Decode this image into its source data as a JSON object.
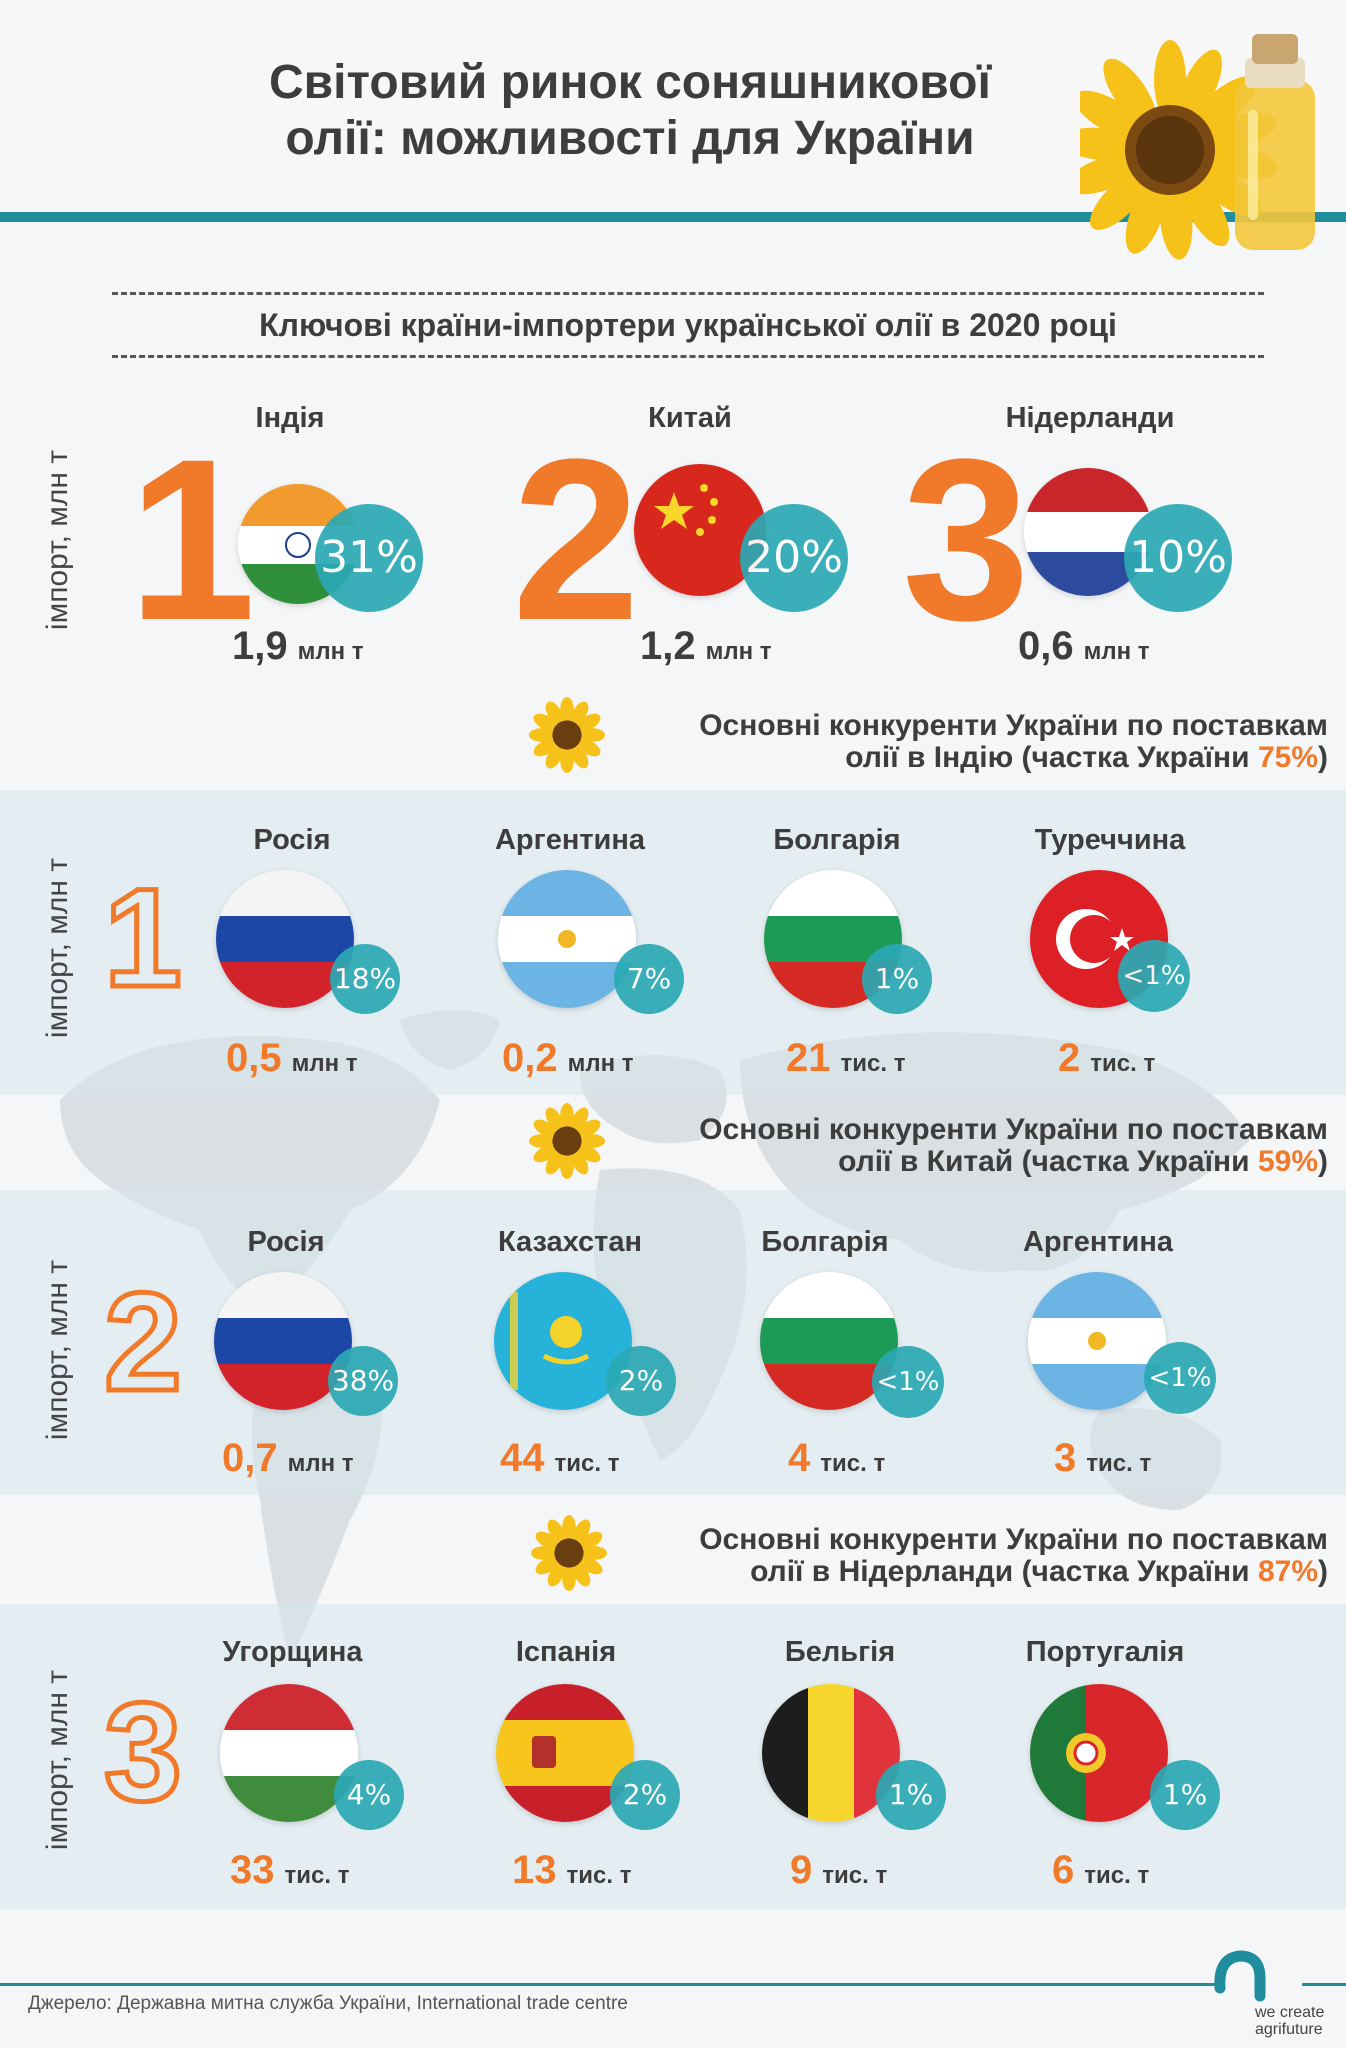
{
  "title_line1": "Світовий ринок соняшникової",
  "title_line2": "олії: можливості для України",
  "subtitle": "Ключові країни-імпортери української олії в 2020 році",
  "axis_label": "імпорт, млн т",
  "top": [
    {
      "rank": "1",
      "name": "Індія",
      "share": "31%",
      "value": "1,9",
      "unit": "млн т"
    },
    {
      "rank": "2",
      "name": "Китай",
      "share": "20%",
      "value": "1,2",
      "unit": "млн т"
    },
    {
      "rank": "3",
      "name": "Нідерланди",
      "share": "10%",
      "value": "0,6",
      "unit": "млн т"
    }
  ],
  "sections": [
    {
      "rank": "1",
      "heading_line1": "Основні конкуренти України по поставкам",
      "heading_prefix": "олії в Індію (частка України ",
      "heading_share": "75%",
      "heading_suffix": ")",
      "countries": [
        {
          "name": "Росія",
          "share": "18%",
          "value": "0,5",
          "unit": "млн т"
        },
        {
          "name": "Аргентина",
          "share": "7%",
          "value": "0,2",
          "unit": "млн т"
        },
        {
          "name": "Болгарія",
          "share": "1%",
          "value": "21",
          "unit": "тис. т"
        },
        {
          "name": "Туреччина",
          "share": "<1%",
          "value": "2",
          "unit": "тис. т"
        }
      ]
    },
    {
      "rank": "2",
      "heading_line1": "Основні конкуренти України по поставкам",
      "heading_prefix": "олії в Китай (частка України ",
      "heading_share": "59%",
      "heading_suffix": ")",
      "countries": [
        {
          "name": "Росія",
          "share": "38%",
          "value": "0,7",
          "unit": "млн т"
        },
        {
          "name": "Казахстан",
          "share": "2%",
          "value": "44",
          "unit": "тис. т"
        },
        {
          "name": "Болгарія",
          "share": "<1%",
          "value": "4",
          "unit": "тис. т"
        },
        {
          "name": "Аргентина",
          "share": "<1%",
          "value": "3",
          "unit": "тис. т"
        }
      ]
    },
    {
      "rank": "3",
      "heading_line1": "Основні конкуренти України по поставкам",
      "heading_prefix": "олії в Нідерланди (частка України ",
      "heading_share": "87%",
      "heading_suffix": ")",
      "countries": [
        {
          "name": "Угорщина",
          "share": "4%",
          "value": "33",
          "unit": "тис. т"
        },
        {
          "name": "Іспанія",
          "share": "2%",
          "value": "13",
          "unit": "тис. т"
        },
        {
          "name": "Бельгія",
          "share": "1%",
          "value": "9",
          "unit": "тис. т"
        },
        {
          "name": "Португалія",
          "share": "1%",
          "value": "6",
          "unit": "тис. т"
        }
      ]
    }
  ],
  "source": "Джерело: Державна митна служба України, International trade centre",
  "logo_line1": "we create",
  "logo_line2": "agrifuture",
  "colors": {
    "accent": "#f07a2a",
    "teal": "#2ba9b4",
    "line": "#1f8d9c"
  }
}
